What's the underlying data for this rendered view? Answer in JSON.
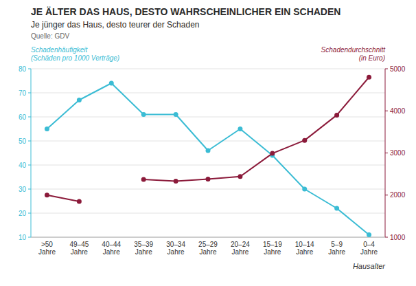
{
  "chart_data": {
    "type": "line",
    "title": "JE ÄLTER DAS HAUS, DESTO WAHRSCHEINLICHER EIN SCHADEN",
    "subtitle": "Je jünger das Haus, desto teurer der Schaden",
    "source": "Quelle: GDV",
    "x_label": "Hausalter",
    "categories": [
      ">50\nJahre",
      "49–45\nJahre",
      "40–44\nJahre",
      "35–39\nJahre",
      "30–34\nJahre",
      "25–29\nJahre",
      "20–24\nJahre",
      "15–19\nJahre",
      "10–14\nJahre",
      "5–9\nJahre",
      "0–4\nJahre"
    ],
    "series": [
      {
        "name": "Schadenhäufigkeit\n(Schäden pro 1000 Verträge)",
        "color": "#3BBCD4",
        "marker": "circle",
        "values": [
          55,
          67,
          74,
          61,
          61,
          46,
          55,
          44,
          30,
          22,
          11
        ]
      },
      {
        "name": "Schadendurchschnitt\n(in Euro)",
        "color": "#8B1A3A",
        "marker": "circle",
        "axis": "y2",
        "values": [
          2000,
          1850,
          null,
          2370,
          2330,
          2380,
          2440,
          2990,
          3300,
          3900,
          4800
        ]
      }
    ],
    "ylim": [
      10,
      80
    ],
    "yticks": [
      10,
      20,
      30,
      40,
      50,
      60,
      70,
      80
    ],
    "y2lim": [
      1000,
      5000
    ],
    "y2ticks": [
      1000,
      2000,
      3000,
      4000,
      5000
    ],
    "grid": true
  }
}
